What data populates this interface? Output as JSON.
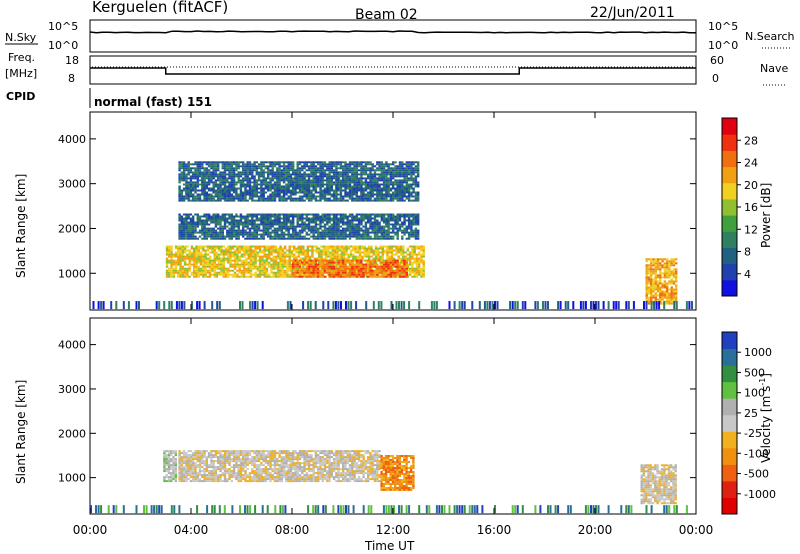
{
  "header": {
    "station": "Kerguelen (fitACF)",
    "beam": "Beam 02",
    "date": "22/Jun/2011"
  },
  "status_panels": {
    "nsky_label": "N.Sky",
    "nsearch_label": "N.Search",
    "noise_ticks_left": [
      "10^5",
      "10^0"
    ],
    "noise_ticks_right": [
      "10^5",
      "10^0"
    ],
    "freq_label_line1": "Freq.",
    "freq_label_line2": "[MHz]",
    "freq_ticks": [
      "18",
      "8"
    ],
    "nave_label": "Nave",
    "nave_ticks": [
      "60",
      "0"
    ],
    "cpid_label": "CPID",
    "cpid_value": "normal (fast) 151"
  },
  "chart_data": [
    {
      "type": "heatmap",
      "name": "power",
      "ylabel": "Slant Range [km]",
      "xlabel": "Time UT",
      "ylim": [
        180,
        4600
      ],
      "xlim": [
        0,
        24
      ],
      "x_ticks": [
        "00:00",
        "04:00",
        "08:00",
        "12:00",
        "16:00",
        "20:00",
        "00:00"
      ],
      "y_ticks": [
        1000,
        2000,
        3000,
        4000
      ],
      "colorbar": {
        "label": "Power [dB]",
        "ticks": [
          "4",
          "8",
          "12",
          "16",
          "20",
          "24",
          "28"
        ],
        "colors": [
          "#1010e0",
          "#2040b0",
          "#206080",
          "#308060",
          "#40a040",
          "#90c030",
          "#f0d020",
          "#f0a010",
          "#f07010",
          "#f03010",
          "#e00010"
        ]
      },
      "regions": [
        {
          "t0": 3.0,
          "t1": 13.2,
          "r0": 900,
          "r1": 1600,
          "value_db": 18
        },
        {
          "t0": 8.0,
          "t1": 12.5,
          "r0": 900,
          "r1": 1300,
          "value_db": 26
        },
        {
          "t0": 3.5,
          "t1": 13.0,
          "r0": 1750,
          "r1": 2300,
          "value_db": 6
        },
        {
          "t0": 3.5,
          "t1": 13.0,
          "r0": 2600,
          "r1": 3500,
          "value_db": 5
        },
        {
          "t0": 22.0,
          "t1": 23.2,
          "r0": 300,
          "r1": 1300,
          "value_db": 22
        }
      ]
    },
    {
      "type": "heatmap",
      "name": "velocity",
      "ylabel": "Slant Range [km]",
      "xlabel": "Time UT",
      "ylim": [
        180,
        4600
      ],
      "xlim": [
        0,
        24
      ],
      "x_ticks": [
        "00:00",
        "04:00",
        "08:00",
        "12:00",
        "16:00",
        "20:00",
        "00:00"
      ],
      "y_ticks": [
        1000,
        2000,
        3000,
        4000
      ],
      "colorbar": {
        "label": "Velocity [m s",
        "label_sup": "-1",
        "label_tail": "]",
        "ticks": [
          "1000",
          "500",
          "100",
          "25",
          "-25",
          "-100",
          "-500",
          "-1000"
        ],
        "colors": [
          "#2040c0",
          "#2a6f9a",
          "#309040",
          "#60c040",
          "#b0b0b0",
          "#c8c8c8",
          "#f0b020",
          "#f09010",
          "#f06010",
          "#e02010",
          "#e00000"
        ]
      },
      "regions": [
        {
          "t0": 3.5,
          "t1": 11.5,
          "r0": 900,
          "r1": 1600,
          "value_ms": 0
        },
        {
          "t0": 11.5,
          "t1": 12.8,
          "r0": 700,
          "r1": 1500,
          "value_ms": -300
        },
        {
          "t0": 2.9,
          "t1": 3.4,
          "r0": 900,
          "r1": 1600,
          "value_ms": 150
        },
        {
          "t0": 21.8,
          "t1": 23.2,
          "r0": 400,
          "r1": 1300,
          "value_ms": 0
        }
      ]
    }
  ]
}
